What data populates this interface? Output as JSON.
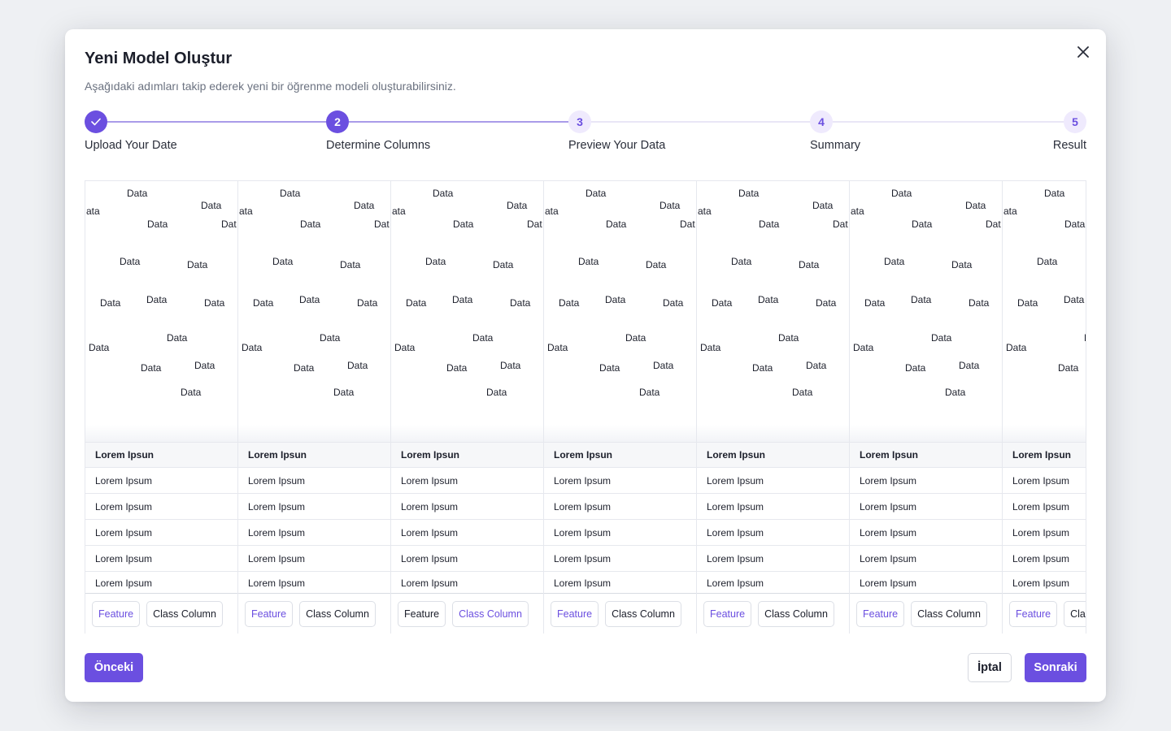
{
  "modal": {
    "title": "Yeni Model Oluştur",
    "subtitle": "Aşağıdaki adımları takip ederek yeni bir öğrenme modeli oluşturabilirsiniz.",
    "close_icon": "close-icon"
  },
  "stepper": {
    "steps": [
      {
        "number": "1",
        "label": "Upload Your Date",
        "state": "done",
        "icon": "check-icon"
      },
      {
        "number": "2",
        "label": "Determine Columns",
        "state": "active"
      },
      {
        "number": "3",
        "label": "Preview Your Data",
        "state": "pending"
      },
      {
        "number": "4",
        "label": "Summary",
        "state": "pending"
      },
      {
        "number": "5",
        "label": "Result",
        "state": "pending"
      }
    ],
    "accent_color": "#6b4fe0",
    "pending_color": "#efeafd"
  },
  "grid": {
    "data_label": "Data",
    "clipped_left_label": "ata",
    "clipped_right_label": "Dat",
    "header_text": "Lorem Ipsun",
    "cell_text": "Lorem Ipsum",
    "columns": [
      {
        "feature_label": "Feature",
        "class_label": "Class Column",
        "selected": "feature"
      },
      {
        "feature_label": "Feature",
        "class_label": "Class Column",
        "selected": "feature"
      },
      {
        "feature_label": "Feature",
        "class_label": "Class Column",
        "selected": "class"
      },
      {
        "feature_label": "Feature",
        "class_label": "Class Column",
        "selected": "feature"
      },
      {
        "feature_label": "Feature",
        "class_label": "Class Column",
        "selected": "feature"
      },
      {
        "feature_label": "Feature",
        "class_label": "Class Column",
        "selected": "feature"
      },
      {
        "feature_label": "Feature",
        "class_label": "Class Column",
        "selected": "feature"
      }
    ]
  },
  "footer": {
    "prev_label": "Önceki",
    "cancel_label": "İptal",
    "next_label": "Sonraki"
  }
}
